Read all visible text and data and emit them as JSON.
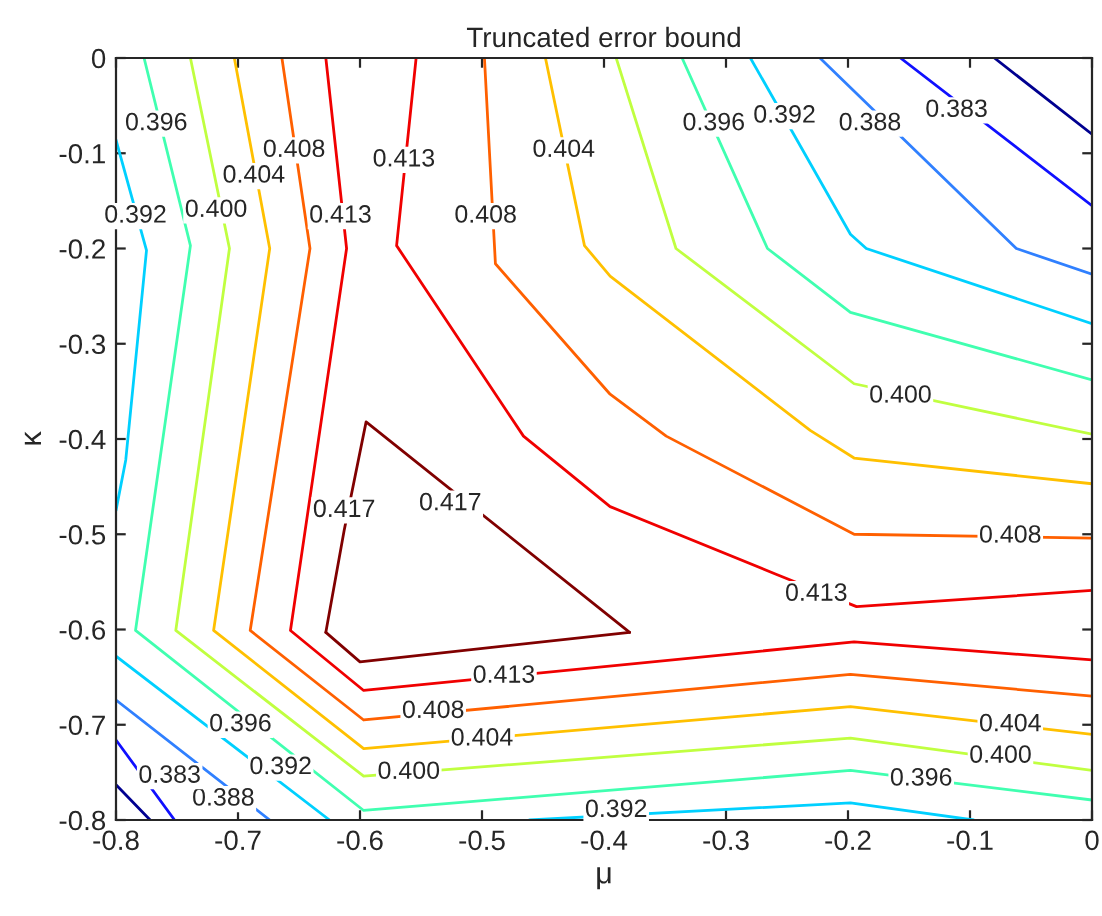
{
  "chart_data": {
    "type": "line",
    "title": "Truncated error bound",
    "xlabel": "μ",
    "ylabel": "κ",
    "xlim": [
      -0.8,
      0
    ],
    "ylim": [
      -0.8,
      0
    ],
    "xticks": [
      -0.8,
      -0.7,
      -0.6,
      -0.5,
      -0.4,
      -0.3,
      -0.2,
      -0.1,
      0
    ],
    "yticks": [
      -0.8,
      -0.7,
      -0.6,
      -0.5,
      -0.4,
      -0.3,
      -0.2,
      -0.1,
      0
    ],
    "grid": false,
    "legend": false,
    "marker": "none",
    "line_style": "solid",
    "series": [
      {
        "color": "#000090",
        "x": [
          -0.08,
          0
        ],
        "values": [
          0,
          -0.08
        ]
      },
      {
        "color": "#000090",
        "x": [
          -0.8,
          -0.772
        ],
        "values": [
          -0.763,
          -0.8
        ]
      },
      {
        "color": "#1010ff",
        "x": [
          -0.157,
          0
        ],
        "values": [
          0,
          -0.155
        ]
      },
      {
        "color": "#1010ff",
        "x": [
          -0.8,
          -0.752
        ],
        "values": [
          -0.716,
          -0.8
        ]
      },
      {
        "color": "#3080ff",
        "x": [
          -0.223,
          -0.062,
          0
        ],
        "values": [
          0,
          -0.2,
          -0.227
        ]
      },
      {
        "color": "#3080ff",
        "x": [
          -0.8,
          -0.674
        ],
        "values": [
          -0.674,
          -0.8
        ]
      },
      {
        "color": "#00d0ff",
        "x": [
          -0.28,
          -0.198,
          -0.185,
          0
        ],
        "values": [
          0,
          -0.185,
          -0.2,
          -0.279
        ]
      },
      {
        "color": "#00d0ff",
        "x": [
          -0.8,
          -0.775,
          -0.792,
          -0.8
        ],
        "values": [
          -0.086,
          -0.202,
          -0.422,
          -0.475
        ]
      },
      {
        "color": "#00d0ff",
        "x": [
          -0.8,
          -0.625
        ],
        "values": [
          -0.628,
          -0.8
        ]
      },
      {
        "color": "#00d0ff",
        "x": [
          -0.461,
          -0.198,
          -0.097
        ],
        "values": [
          -0.8,
          -0.782,
          -0.8
        ]
      },
      {
        "color": "#40ffb0",
        "x": [
          -0.336,
          -0.266,
          -0.198,
          0
        ],
        "values": [
          0,
          -0.2,
          -0.267,
          -0.338
        ]
      },
      {
        "color": "#40ffb0",
        "x": [
          -0.777,
          -0.739,
          -0.784,
          -0.597,
          -0.198,
          0
        ],
        "values": [
          0,
          -0.197,
          -0.601,
          -0.79,
          -0.748,
          -0.779
        ]
      },
      {
        "color": "#c0ff40",
        "x": [
          -0.39,
          -0.341,
          -0.195,
          0
        ],
        "values": [
          0,
          -0.2,
          -0.342,
          -0.395
        ]
      },
      {
        "color": "#c0ff40",
        "x": [
          -0.739,
          -0.707,
          -0.751,
          -0.597,
          -0.198,
          0
        ],
        "values": [
          0,
          -0.2,
          -0.601,
          -0.754,
          -0.714,
          -0.748
        ]
      },
      {
        "color": "#ffc000",
        "x": [
          -0.448,
          -0.416,
          -0.395,
          -0.231,
          -0.195,
          0
        ],
        "values": [
          0,
          -0.197,
          -0.229,
          -0.391,
          -0.42,
          -0.447
        ]
      },
      {
        "color": "#ffc000",
        "x": [
          -0.703,
          -0.674,
          -0.72,
          -0.597,
          -0.198,
          0
        ],
        "values": [
          0,
          -0.2,
          -0.601,
          -0.725,
          -0.681,
          -0.71
        ]
      },
      {
        "color": "#ff6000",
        "x": [
          -0.498,
          -0.489,
          -0.395,
          -0.349,
          -0.195,
          0
        ],
        "values": [
          0,
          -0.216,
          -0.353,
          -0.397,
          -0.5,
          -0.504
        ]
      },
      {
        "color": "#ff6000",
        "x": [
          -0.664,
          -0.641,
          -0.69,
          -0.597,
          -0.198,
          0
        ],
        "values": [
          0,
          -0.2,
          -0.601,
          -0.695,
          -0.647,
          -0.67
        ]
      },
      {
        "color": "#f00000",
        "x": [
          -0.554,
          -0.57,
          -0.466,
          -0.395,
          -0.259,
          -0.193,
          0
        ],
        "values": [
          0,
          -0.197,
          -0.397,
          -0.471,
          -0.542,
          -0.576,
          -0.559
        ]
      },
      {
        "color": "#f00000",
        "x": [
          -0.628,
          -0.611,
          -0.657,
          -0.597,
          -0.195,
          0
        ],
        "values": [
          0,
          -0.2,
          -0.601,
          -0.664,
          -0.613,
          -0.632
        ]
      },
      {
        "color": "#800000",
        "x": [
          -0.628,
          -0.613,
          -0.595,
          -0.379
        ],
        "values": [
          -0.603,
          -0.496,
          -0.382,
          -0.603
        ]
      },
      {
        "color": "#800000",
        "x": [
          -0.628,
          -0.6,
          -0.379
        ],
        "values": [
          -0.603,
          -0.634,
          -0.603
        ]
      }
    ],
    "annotations": [
      {
        "text": "0.383",
        "x": -0.111,
        "y": -0.055
      },
      {
        "text": "0.388",
        "x": -0.182,
        "y": -0.069
      },
      {
        "text": "0.392",
        "x": -0.252,
        "y": -0.061
      },
      {
        "text": "0.396",
        "x": -0.31,
        "y": -0.069
      },
      {
        "text": "0.400",
        "x": -0.157,
        "y": -0.355
      },
      {
        "text": "0.404",
        "x": -0.433,
        "y": -0.097
      },
      {
        "text": "0.408",
        "x": -0.497,
        "y": -0.166
      },
      {
        "text": "0.408",
        "x": -0.067,
        "y": -0.502
      },
      {
        "text": "0.413",
        "x": -0.564,
        "y": -0.107
      },
      {
        "text": "0.413",
        "x": -0.226,
        "y": -0.563
      },
      {
        "text": "0.396",
        "x": -0.767,
        "y": -0.069
      },
      {
        "text": "0.396",
        "x": -0.698,
        "y": -0.7
      },
      {
        "text": "0.396",
        "x": -0.14,
        "y": -0.757
      },
      {
        "text": "0.400",
        "x": -0.718,
        "y": -0.16
      },
      {
        "text": "0.400",
        "x": -0.56,
        "y": -0.75
      },
      {
        "text": "0.400",
        "x": -0.075,
        "y": -0.733
      },
      {
        "text": "0.404",
        "x": -0.687,
        "y": -0.124
      },
      {
        "text": "0.404",
        "x": -0.5,
        "y": -0.715
      },
      {
        "text": "0.404",
        "x": -0.067,
        "y": -0.7
      },
      {
        "text": "0.408",
        "x": -0.654,
        "y": -0.097
      },
      {
        "text": "0.408",
        "x": -0.54,
        "y": -0.686
      },
      {
        "text": "0.413",
        "x": -0.616,
        "y": -0.166
      },
      {
        "text": "0.413",
        "x": -0.482,
        "y": -0.649
      },
      {
        "text": "0.392",
        "x": -0.784,
        "y": -0.166
      },
      {
        "text": "0.392",
        "x": -0.665,
        "y": -0.745
      },
      {
        "text": "0.392",
        "x": -0.39,
        "y": -0.79
      },
      {
        "text": "0.388",
        "x": -0.712,
        "y": -0.778
      },
      {
        "text": "0.383",
        "x": -0.756,
        "y": -0.754
      },
      {
        "text": "0.417",
        "x": -0.613,
        "y": -0.475
      },
      {
        "text": "0.417",
        "x": -0.526,
        "y": -0.468
      }
    ]
  }
}
